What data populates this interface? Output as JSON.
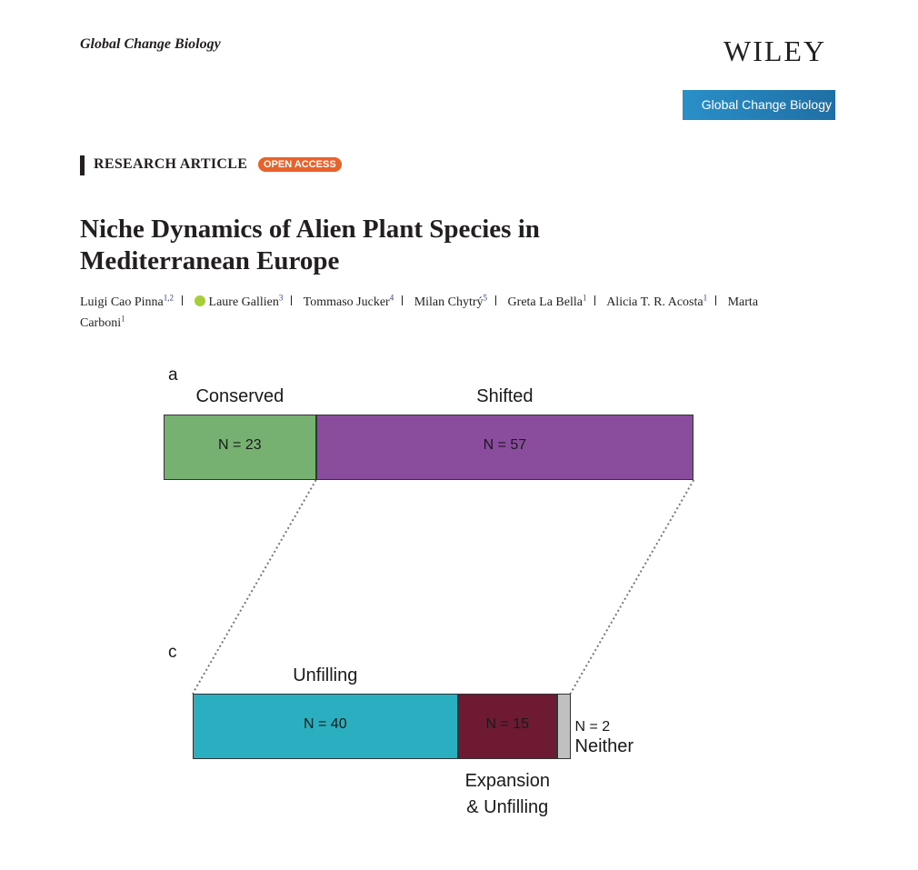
{
  "header": {
    "journal": "Global Change Biology",
    "publisher": "WILEY",
    "badge": "Global Change Biology"
  },
  "article": {
    "kind": "RESEARCH ARTICLE",
    "access": "OPEN ACCESS",
    "title": "Niche Dynamics of Alien Plant Species in Mediterranean Europe",
    "authors": [
      {
        "name": "Luigi Cao Pinna",
        "affil": "1,2"
      },
      {
        "name": "Laure Gallien",
        "affil": "3"
      },
      {
        "name": "Tommaso Jucker",
        "affil": "4"
      },
      {
        "name": "Milan Chytrý",
        "affil": "5"
      },
      {
        "name": "Greta La Bella",
        "affil": "1"
      },
      {
        "name": "Alicia T. R. Acosta",
        "affil": "1"
      },
      {
        "name": "Marta Carboni",
        "affil": "1"
      }
    ]
  },
  "chart_data": [
    {
      "type": "bar",
      "label": "a",
      "series": [
        {
          "name": "Conserved",
          "color": "#76b172",
          "values": [
            23
          ],
          "value_labels": [
            "N = 23"
          ]
        },
        {
          "name": "Shifted",
          "color": "#8a4c9c",
          "values": [
            57
          ],
          "value_labels": [
            "N = 57"
          ]
        }
      ]
    },
    {
      "type": "bar",
      "label": "c",
      "series": [
        {
          "name": "Unfilling",
          "color": "#29afbf",
          "values": [
            40
          ],
          "value_labels": [
            "N = 40"
          ]
        },
        {
          "name": "Expansion & Unfilling",
          "color": "#6f1a33",
          "values": [
            15
          ],
          "value_labels": [
            "N = 15"
          ]
        },
        {
          "name": "Neither",
          "color": "#c0c0c0",
          "values": [
            2
          ],
          "value_labels": [
            "N = 2"
          ]
        }
      ]
    }
  ]
}
